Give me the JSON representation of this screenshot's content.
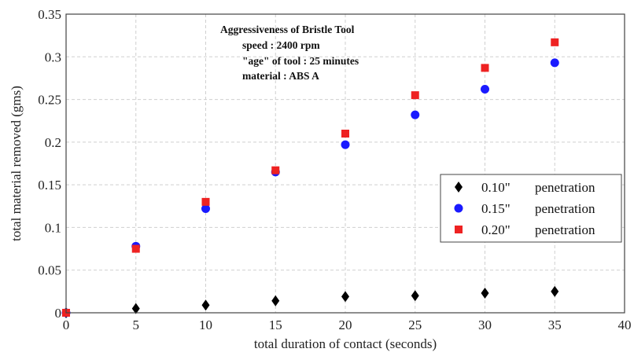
{
  "chart_data": {
    "type": "scatter",
    "title": "",
    "xlabel": "total duration of contact (seconds)",
    "ylabel": "total material removed (gms)",
    "xlim": [
      0,
      40
    ],
    "ylim": [
      0,
      0.35
    ],
    "x_ticks": [
      "0",
      "5",
      "10",
      "15",
      "20",
      "25",
      "30",
      "35",
      "40"
    ],
    "y_ticks": [
      "0",
      "0.05",
      "0.1",
      "0.15",
      "0.2",
      "0.25",
      "0.3",
      "0.35"
    ],
    "grid": true,
    "legend_position": "right",
    "annotation": [
      "Aggressiveness of Bristle Tool",
      "speed : 2400 rpm",
      "\"age\" of tool : 25 minutes",
      "material : ABS A"
    ],
    "x": [
      0,
      5,
      10,
      15,
      20,
      25,
      30,
      35
    ],
    "series": [
      {
        "name": "0.10\"",
        "legend_suffix": "penetration",
        "marker": "diamond",
        "color": "#000000",
        "values": [
          0,
          0.005,
          0.009,
          0.014,
          0.019,
          0.02,
          0.023,
          0.025
        ]
      },
      {
        "name": "0.15\"",
        "legend_suffix": "penetration",
        "marker": "circle",
        "color": "#1a1aff",
        "values": [
          0,
          0.078,
          0.122,
          0.165,
          0.197,
          0.232,
          0.262,
          0.293
        ]
      },
      {
        "name": "0.20\"",
        "legend_suffix": "penetration",
        "marker": "square",
        "color": "#ee2222",
        "values": [
          0,
          0.075,
          0.13,
          0.167,
          0.21,
          0.255,
          0.287,
          0.317
        ]
      }
    ]
  }
}
